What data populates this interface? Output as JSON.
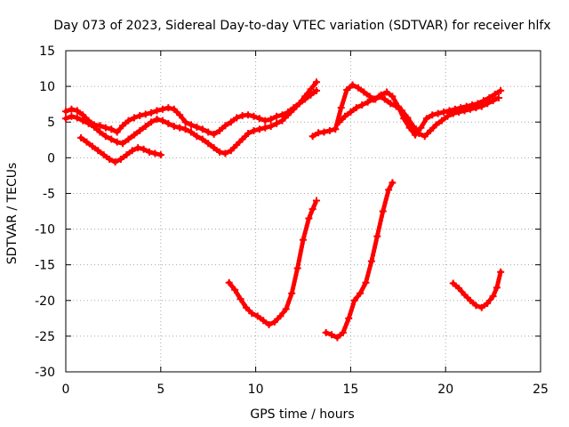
{
  "chart_data": {
    "type": "scatter",
    "title": "Day 073 of 2023, Sidereal Day-to-day VTEC variation (SDTVAR) for receiver hlfx",
    "xlabel": "GPS time / hours",
    "ylabel": "SDTVAR / TECUs",
    "xlim": [
      0,
      25
    ],
    "ylim": [
      -30,
      15
    ],
    "x_ticks": [
      0,
      5,
      10,
      15,
      20,
      25
    ],
    "y_ticks": [
      -30,
      -25,
      -20,
      -15,
      -10,
      -5,
      0,
      5,
      10,
      15
    ],
    "x_tick_labels": [
      "0",
      "5",
      "10",
      "15",
      "20",
      "25"
    ],
    "y_tick_labels": [
      "-30",
      "-25",
      "-20",
      "-15",
      "-10",
      "-5",
      "0",
      "5",
      "10",
      "15"
    ],
    "grid": true,
    "marker": "plus",
    "color": "#ff0000",
    "series": [
      {
        "x": [
          0,
          0.3,
          0.6,
          0.9,
          1.2,
          1.5,
          1.8,
          2.1,
          2.4,
          2.7,
          3.0,
          3.3,
          3.6,
          3.9,
          4.2,
          4.5,
          4.8,
          5.1,
          5.4,
          5.7,
          6.0,
          6.3,
          6.6,
          6.9,
          7.2,
          7.5,
          7.8,
          8.1,
          8.4,
          8.7,
          9.0,
          9.3,
          9.6,
          9.9,
          10.2,
          10.5,
          10.8,
          11.1,
          11.4,
          11.7,
          12.0,
          12.3,
          12.6,
          12.9,
          13.2
        ],
        "y": [
          6.5,
          6.8,
          6.6,
          6.0,
          5.2,
          4.6,
          4.5,
          4.2,
          4.0,
          3.6,
          4.5,
          5.2,
          5.6,
          5.9,
          6.1,
          6.3,
          6.6,
          6.8,
          7.0,
          6.8,
          6.0,
          5.0,
          4.6,
          4.3,
          4.0,
          3.6,
          3.3,
          3.8,
          4.5,
          5.0,
          5.6,
          5.9,
          6.0,
          5.8,
          5.5,
          5.2,
          5.4,
          5.8,
          6.0,
          6.4,
          7.0,
          7.6,
          8.2,
          8.8,
          9.4
        ]
      },
      {
        "x": [
          0,
          0.3,
          0.6,
          0.9,
          1.2,
          1.5,
          1.8,
          2.1,
          2.4,
          2.7,
          3.0,
          3.3,
          3.6,
          3.9,
          4.2,
          4.5,
          4.8,
          5.1,
          5.4,
          5.7,
          6.0,
          6.3,
          6.6,
          6.9,
          7.2,
          7.5,
          7.8,
          8.1,
          8.4,
          8.7,
          9.0,
          9.3,
          9.6,
          9.9,
          10.2,
          10.5,
          10.8,
          11.1,
          11.4,
          11.7,
          12.0,
          12.3,
          12.6,
          12.9,
          13.2
        ],
        "y": [
          5.5,
          5.8,
          5.6,
          5.2,
          4.8,
          4.3,
          3.6,
          3.0,
          2.6,
          2.2,
          2.0,
          2.6,
          3.2,
          3.8,
          4.4,
          5.0,
          5.4,
          5.2,
          4.8,
          4.4,
          4.2,
          4.0,
          3.6,
          3.0,
          2.6,
          2.0,
          1.4,
          0.8,
          0.6,
          1.0,
          1.8,
          2.6,
          3.4,
          3.8,
          4.0,
          4.2,
          4.4,
          4.8,
          5.2,
          6.0,
          6.8,
          7.6,
          8.6,
          9.6,
          10.6
        ]
      },
      {
        "x": [
          0.8,
          1.1,
          1.4,
          1.7,
          2.0,
          2.3,
          2.6,
          2.9,
          3.2,
          3.5,
          3.8,
          4.1,
          4.4,
          4.7,
          5.0
        ],
        "y": [
          2.8,
          2.2,
          1.6,
          1.0,
          0.4,
          -0.2,
          -0.6,
          -0.2,
          0.4,
          1.0,
          1.4,
          1.2,
          0.8,
          0.6,
          0.4
        ]
      },
      {
        "x": [
          8.6,
          8.9,
          9.2,
          9.5,
          9.8,
          10.1,
          10.4,
          10.7,
          11.0,
          11.3,
          11.6,
          11.9,
          12.2,
          12.5,
          12.8,
          13.0,
          13.2
        ],
        "y": [
          -17.5,
          -18.5,
          -19.8,
          -21.0,
          -21.8,
          -22.2,
          -22.8,
          -23.4,
          -23.0,
          -22.2,
          -21.2,
          -19.0,
          -15.5,
          -11.5,
          -8.5,
          -7.2,
          -6.0
        ]
      },
      {
        "x": [
          13.7,
          14.0,
          14.3,
          14.6,
          14.9,
          15.2,
          15.5,
          15.8,
          16.1,
          16.4,
          16.7,
          17.0,
          17.2
        ],
        "y": [
          -24.5,
          -24.8,
          -25.2,
          -24.5,
          -22.5,
          -20.0,
          -19.0,
          -17.5,
          -14.5,
          -11.0,
          -7.5,
          -4.5,
          -3.5
        ]
      },
      {
        "x": [
          13.0,
          13.3,
          13.6,
          13.9,
          14.2,
          14.5,
          14.8,
          15.1,
          15.4,
          15.7,
          16.0,
          16.3,
          16.6,
          16.9,
          17.2,
          17.5,
          17.8,
          18.1,
          18.4,
          18.7,
          19.0,
          19.3,
          19.6,
          19.9,
          20.2,
          20.5,
          20.8,
          21.1,
          21.4,
          21.7,
          22.0,
          22.3,
          22.6,
          22.9
        ],
        "y": [
          3.0,
          3.5,
          3.6,
          3.8,
          4.0,
          7.0,
          9.5,
          10.2,
          9.8,
          9.2,
          8.6,
          8.2,
          8.8,
          9.2,
          8.6,
          7.2,
          5.5,
          4.2,
          3.2,
          4.2,
          5.5,
          6.0,
          6.2,
          6.4,
          6.6,
          6.8,
          7.0,
          7.2,
          7.4,
          7.6,
          8.0,
          8.4,
          8.9,
          9.4
        ]
      },
      {
        "x": [
          14.4,
          14.7,
          15.0,
          15.3,
          15.6,
          15.9,
          16.2,
          16.5,
          16.8,
          17.1,
          17.4,
          17.7,
          18.0,
          18.3,
          18.6,
          18.9,
          19.2,
          19.5,
          19.8,
          20.1,
          20.4,
          20.7,
          21.0,
          21.3,
          21.6,
          21.9,
          22.2,
          22.5,
          22.8
        ],
        "y": [
          5.0,
          5.8,
          6.4,
          7.0,
          7.4,
          7.8,
          8.2,
          8.6,
          8.2,
          7.6,
          7.2,
          6.6,
          5.6,
          4.4,
          3.4,
          3.0,
          3.8,
          4.6,
          5.2,
          5.8,
          6.2,
          6.4,
          6.6,
          6.8,
          7.0,
          7.2,
          7.6,
          8.0,
          8.4
        ]
      },
      {
        "x": [
          20.4,
          20.7,
          21.0,
          21.3,
          21.6,
          21.9,
          22.2,
          22.5,
          22.7,
          22.9
        ],
        "y": [
          -17.6,
          -18.3,
          -19.2,
          -20.0,
          -20.7,
          -21.0,
          -20.4,
          -19.4,
          -18.2,
          -16.0
        ]
      }
    ]
  }
}
